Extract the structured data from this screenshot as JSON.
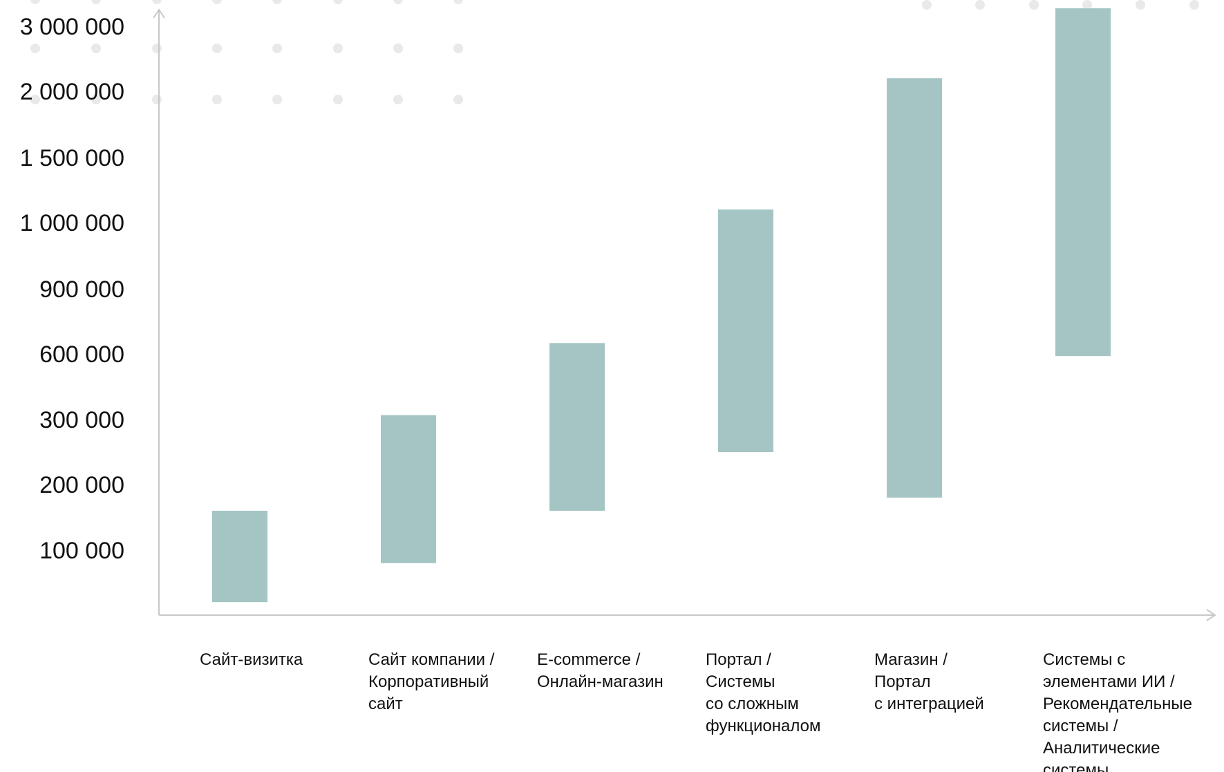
{
  "colors": {
    "bar": "#a4c5c4",
    "axis": "#c8c8c8",
    "dot": "#e9e9e9",
    "text": "#111111"
  },
  "chart_data": {
    "type": "bar",
    "subtype": "floating-range",
    "title": "",
    "xlabel": "",
    "ylabel": "",
    "y_scale": "non-linear (ordinal tick spacing)",
    "yticks": [
      {
        "value": 100000,
        "label": "100 000"
      },
      {
        "value": 200000,
        "label": "200 000"
      },
      {
        "value": 300000,
        "label": "300 000"
      },
      {
        "value": 600000,
        "label": "600 000"
      },
      {
        "value": 900000,
        "label": "900 000"
      },
      {
        "value": 1000000,
        "label": "1 000 000"
      },
      {
        "value": 1500000,
        "label": "1 500 000"
      },
      {
        "value": 2000000,
        "label": "2 000 000"
      },
      {
        "value": 3000000,
        "label": "3 000 000"
      }
    ],
    "categories": [
      [
        "Сайт-визитка"
      ],
      [
        "Сайт компании /",
        "Корпоративный",
        "сайт"
      ],
      [
        "E-commerce /",
        "Онлайн-магазин"
      ],
      [
        "Портал /",
        "Системы",
        "со сложным",
        "функционалом"
      ],
      [
        "Магазин /",
        "Портал",
        "с интеграцией"
      ],
      [
        "Системы с",
        "элементами ИИ /",
        "Рекомендательные",
        "системы /",
        "Аналитические",
        "системы"
      ]
    ],
    "ranges": [
      {
        "low": 20000,
        "high": 160000
      },
      {
        "low": 80000,
        "high": 320000
      },
      {
        "low": 160000,
        "high": 650000
      },
      {
        "low": 250000,
        "high": 1100000
      },
      {
        "low": 180000,
        "high": 2200000
      },
      {
        "low": 590000,
        "high": 3300000
      }
    ],
    "grid": false,
    "legend": "none"
  }
}
